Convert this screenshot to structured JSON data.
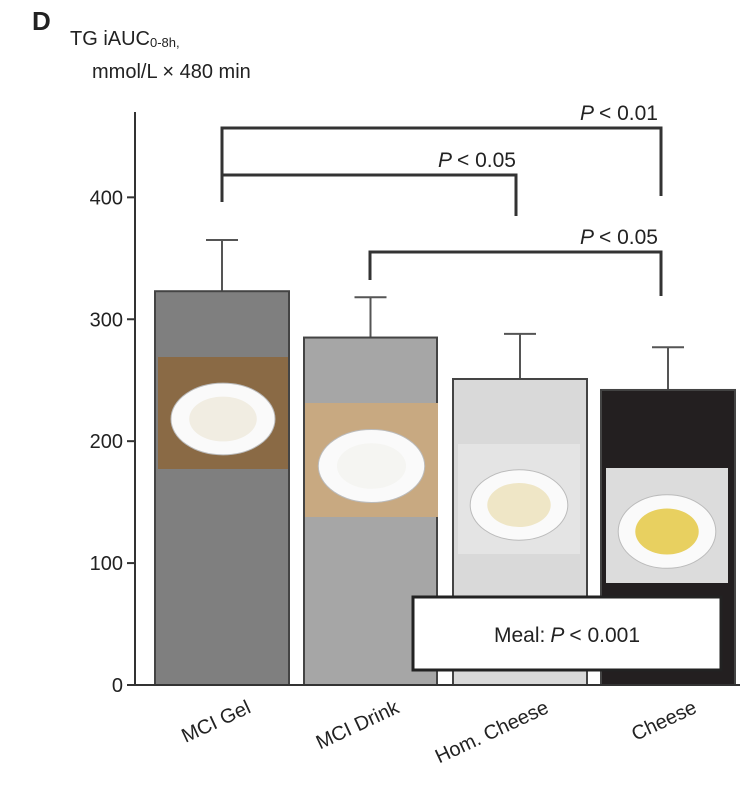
{
  "chart_data": {
    "type": "bar",
    "panel_label": "D",
    "title": "TG iAUC",
    "title_subscript": "0-8h,",
    "subtitle": "mmol/L × 480 min",
    "categories": [
      "MCI Gel",
      "MCI Drink",
      "Hom. Cheese",
      "Cheese"
    ],
    "values": [
      323,
      285,
      251,
      242
    ],
    "errors": [
      42,
      33,
      37,
      35
    ],
    "colors": [
      "#7f7f7f",
      "#a6a6a6",
      "#d9d9d9",
      "#231f20"
    ],
    "ylim": [
      0,
      470
    ],
    "yticks": [
      0,
      100,
      200,
      300,
      400
    ],
    "comparisons": [
      {
        "symbol": "P",
        "text": "< 0.01"
      },
      {
        "symbol": "P",
        "text": "< 0.05"
      },
      {
        "symbol": "P",
        "text": "< 0.05"
      }
    ],
    "meal_note": {
      "prefix": "Meal:",
      "symbol": "P",
      "text": "< 0.001"
    }
  }
}
